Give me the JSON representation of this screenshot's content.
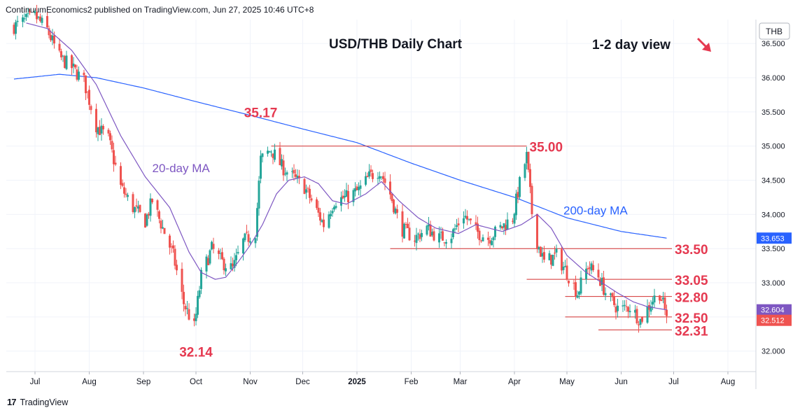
{
  "header": {
    "publisher_line": "ContinuumEconomics2 published on TradingView.com, Jun 27, 2025 10:46 UTC+8"
  },
  "footer": {
    "brand": "TradingView"
  },
  "colors": {
    "up": "#26a69a",
    "down": "#ef5350",
    "ma20": "#7e57c2",
    "ma200": "#2962ff",
    "level_line": "#d32f2f",
    "level_text": "#e53950",
    "ann_blue": "#2962ff",
    "ann_purple": "#7e57c2"
  },
  "chart_data": {
    "type": "candlestick",
    "title": "USD/THB Daily Chart",
    "view_note": "1-2 day view",
    "view_arrow": "down-right",
    "currency_badge": "THB",
    "ylim": [
      31.7,
      36.85
    ],
    "y_ticks": [
      "32.000",
      "32.500",
      "33.000",
      "33.500",
      "34.000",
      "34.500",
      "35.000",
      "35.500",
      "36.000",
      "36.500"
    ],
    "x_ticks": [
      "Jul",
      "Aug",
      "Sep",
      "Oct",
      "Nov",
      "Dec",
      "2025",
      "Feb",
      "Mar",
      "Apr",
      "May",
      "Jun",
      "Jul",
      "Aug"
    ],
    "price_badges": [
      {
        "label": "33.653",
        "value": 33.653,
        "color": "#2962ff"
      },
      {
        "label": "32.604",
        "value": 32.604,
        "color": "#7e57c2"
      },
      {
        "label": "32.512",
        "value": 32.512,
        "color": "#ef5350"
      }
    ],
    "levels": [
      {
        "label": "35.00",
        "value": 35.0,
        "from": "2024-11-13",
        "to": "2025-04-08"
      },
      {
        "label": "33.50",
        "value": 33.5,
        "from": "2025-01-20",
        "to": "2025-06-30"
      },
      {
        "label": "33.05",
        "value": 33.05,
        "from": "2025-04-08",
        "to": "2025-06-30"
      },
      {
        "label": "32.80",
        "value": 32.8,
        "from": "2025-04-30",
        "to": "2025-06-30"
      },
      {
        "label": "32.50",
        "value": 32.5,
        "from": "2025-04-30",
        "to": "2025-06-30"
      },
      {
        "label": "32.31",
        "value": 32.31,
        "from": "2025-05-19",
        "to": "2025-06-30"
      }
    ],
    "annotations": [
      {
        "label": "35.17",
        "date": "2024-11-07",
        "value": 35.42,
        "color": "#e53950"
      },
      {
        "label": "32.14",
        "date": "2024-10-01",
        "value": 31.92,
        "color": "#e53950"
      },
      {
        "label": "20-day MA",
        "date": "2024-09-06",
        "value": 34.62,
        "color": "#7e57c2"
      },
      {
        "label": "200-day MA",
        "date": "2025-04-29",
        "value": 34.0,
        "color": "#2962ff"
      }
    ],
    "series": [
      {
        "name": "USD/THB",
        "type": "candlestick",
        "anchors": [
          [
            "2024-06-19",
            36.75
          ],
          [
            "2024-07-01",
            36.9
          ],
          [
            "2024-07-08",
            36.7
          ],
          [
            "2024-07-15",
            36.3
          ],
          [
            "2024-07-22",
            36.15
          ],
          [
            "2024-07-29",
            35.95
          ],
          [
            "2024-08-05",
            35.3
          ],
          [
            "2024-08-12",
            35.1
          ],
          [
            "2024-08-19",
            34.4
          ],
          [
            "2024-08-26",
            34.1
          ],
          [
            "2024-09-02",
            33.9
          ],
          [
            "2024-09-06",
            34.2
          ],
          [
            "2024-09-12",
            33.8
          ],
          [
            "2024-09-18",
            33.4
          ],
          [
            "2024-09-24",
            32.7
          ],
          [
            "2024-09-30",
            32.35
          ],
          [
            "2024-10-04",
            33.1
          ],
          [
            "2024-10-10",
            33.5
          ],
          [
            "2024-10-16",
            33.3
          ],
          [
            "2024-10-22",
            33.2
          ],
          [
            "2024-10-28",
            33.6
          ],
          [
            "2024-11-04",
            33.75
          ],
          [
            "2024-11-07",
            34.8
          ],
          [
            "2024-11-13",
            34.95
          ],
          [
            "2024-11-19",
            34.7
          ],
          [
            "2024-11-25",
            34.55
          ],
          [
            "2024-12-02",
            34.4
          ],
          [
            "2024-12-09",
            34.05
          ],
          [
            "2024-12-13",
            33.85
          ],
          [
            "2024-12-19",
            34.2
          ],
          [
            "2024-12-26",
            34.25
          ],
          [
            "2025-01-02",
            34.35
          ],
          [
            "2025-01-08",
            34.55
          ],
          [
            "2025-01-14",
            34.65
          ],
          [
            "2025-01-20",
            34.3
          ],
          [
            "2025-01-26",
            33.8
          ],
          [
            "2025-02-03",
            33.65
          ],
          [
            "2025-02-10",
            33.8
          ],
          [
            "2025-02-17",
            33.65
          ],
          [
            "2025-02-24",
            33.7
          ],
          [
            "2025-03-03",
            34.0
          ],
          [
            "2025-03-10",
            33.75
          ],
          [
            "2025-03-17",
            33.65
          ],
          [
            "2025-03-24",
            33.8
          ],
          [
            "2025-03-31",
            33.95
          ],
          [
            "2025-04-04",
            34.45
          ],
          [
            "2025-04-08",
            34.85
          ],
          [
            "2025-04-12",
            33.75
          ],
          [
            "2025-04-18",
            33.3
          ],
          [
            "2025-04-25",
            33.4
          ],
          [
            "2025-05-01",
            33.15
          ],
          [
            "2025-05-07",
            32.85
          ],
          [
            "2025-05-13",
            33.25
          ],
          [
            "2025-05-19",
            33.1
          ],
          [
            "2025-05-24",
            32.8
          ],
          [
            "2025-05-31",
            32.6
          ],
          [
            "2025-06-06",
            32.65
          ],
          [
            "2025-06-12",
            32.45
          ],
          [
            "2025-06-19",
            32.75
          ],
          [
            "2025-06-23",
            32.85
          ],
          [
            "2025-06-27",
            32.512
          ]
        ]
      },
      {
        "name": "20-day MA",
        "type": "line",
        "points": [
          [
            "2024-06-26",
            36.8
          ],
          [
            "2024-07-08",
            36.72
          ],
          [
            "2024-07-22",
            36.4
          ],
          [
            "2024-08-05",
            35.9
          ],
          [
            "2024-08-19",
            35.15
          ],
          [
            "2024-09-02",
            34.55
          ],
          [
            "2024-09-16",
            34.1
          ],
          [
            "2024-09-27",
            33.45
          ],
          [
            "2024-10-04",
            33.15
          ],
          [
            "2024-10-12",
            33.05
          ],
          [
            "2024-10-18",
            33.08
          ],
          [
            "2024-10-25",
            33.3
          ],
          [
            "2024-11-01",
            33.55
          ],
          [
            "2024-11-08",
            33.85
          ],
          [
            "2024-11-16",
            34.3
          ],
          [
            "2024-11-23",
            34.5
          ],
          [
            "2024-12-02",
            34.55
          ],
          [
            "2024-12-10",
            34.45
          ],
          [
            "2024-12-18",
            34.2
          ],
          [
            "2024-12-26",
            34.15
          ],
          [
            "2025-01-06",
            34.3
          ],
          [
            "2025-01-15",
            34.48
          ],
          [
            "2025-01-25",
            34.2
          ],
          [
            "2025-02-05",
            33.95
          ],
          [
            "2025-02-15",
            33.8
          ],
          [
            "2025-02-28",
            33.72
          ],
          [
            "2025-03-10",
            33.85
          ],
          [
            "2025-03-25",
            33.75
          ],
          [
            "2025-04-05",
            33.85
          ],
          [
            "2025-04-14",
            34.0
          ],
          [
            "2025-04-22",
            33.8
          ],
          [
            "2025-05-01",
            33.4
          ],
          [
            "2025-05-12",
            33.15
          ],
          [
            "2025-05-21",
            33.0
          ],
          [
            "2025-05-30",
            32.85
          ],
          [
            "2025-06-08",
            32.72
          ],
          [
            "2025-06-16",
            32.65
          ],
          [
            "2025-06-27",
            32.604
          ]
        ]
      },
      {
        "name": "200-day MA",
        "type": "line",
        "points": [
          [
            "2024-06-19",
            35.98
          ],
          [
            "2024-07-15",
            36.05
          ],
          [
            "2024-08-05",
            36.0
          ],
          [
            "2024-09-01",
            35.85
          ],
          [
            "2024-10-01",
            35.65
          ],
          [
            "2024-11-01",
            35.45
          ],
          [
            "2024-12-01",
            35.25
          ],
          [
            "2025-01-01",
            35.05
          ],
          [
            "2025-02-01",
            34.75
          ],
          [
            "2025-03-01",
            34.5
          ],
          [
            "2025-04-01",
            34.25
          ],
          [
            "2025-05-01",
            33.95
          ],
          [
            "2025-06-01",
            33.75
          ],
          [
            "2025-06-27",
            33.653
          ]
        ]
      }
    ]
  }
}
